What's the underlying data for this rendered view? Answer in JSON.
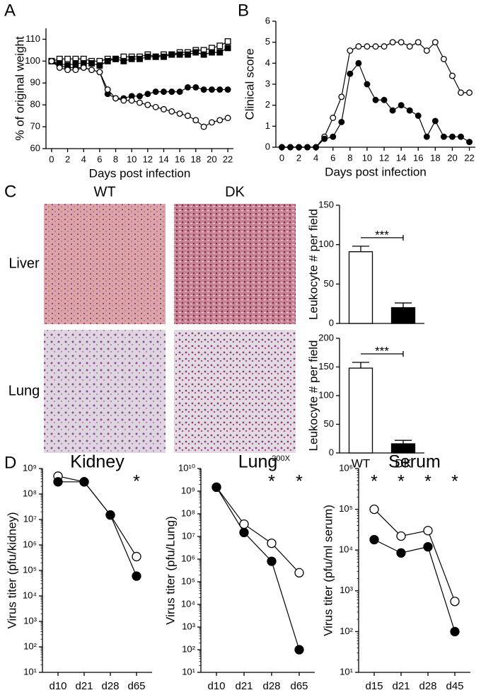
{
  "panel_labels": [
    "A",
    "B",
    "C",
    "D"
  ],
  "histology": {
    "columns": [
      "WT",
      "DK"
    ],
    "rows": [
      "Liver",
      "Lung"
    ],
    "magnification": "200X"
  },
  "chart_data": [
    {
      "type": "line",
      "ylabel": "% of original weight",
      "xlabel": "Days post infection",
      "x": [
        0,
        1,
        2,
        3,
        4,
        5,
        6,
        7,
        8,
        9,
        10,
        11,
        12,
        13,
        14,
        15,
        16,
        17,
        18,
        19,
        20,
        21,
        22
      ],
      "xlim": [
        -0.7,
        22.7
      ],
      "xticks": [
        0,
        2,
        4,
        6,
        8,
        10,
        12,
        14,
        16,
        18,
        20,
        22
      ],
      "ylim": [
        60,
        115
      ],
      "yticks": [
        60,
        70,
        80,
        90,
        100,
        110
      ],
      "series": [
        {
          "marker": "square",
          "color": "#ffffff",
          "values": [
            100,
            101,
            101,
            101,
            101,
            100,
            100,
            101,
            101,
            102,
            102,
            102,
            103,
            102,
            103,
            103,
            104,
            104,
            105,
            105,
            106,
            107,
            109
          ]
        },
        {
          "marker": "square",
          "color": "#000000",
          "values": [
            100,
            99,
            98,
            99,
            99,
            99,
            98,
            100,
            101,
            100,
            101,
            101,
            102,
            102,
            102,
            103,
            103,
            103,
            104,
            103,
            104,
            104,
            106
          ]
        },
        {
          "marker": "circle",
          "color": "#000000",
          "values": [
            100,
            98,
            97,
            97,
            97,
            96,
            95,
            85,
            83,
            83,
            84,
            84,
            85,
            86,
            86,
            86,
            86,
            88,
            88,
            87,
            87,
            87,
            87
          ]
        },
        {
          "marker": "circle",
          "color": "#ffffff",
          "values": [
            100,
            97,
            96,
            96,
            97,
            96,
            95,
            87,
            83,
            82,
            82,
            81,
            80,
            79,
            78,
            77,
            76,
            75,
            73,
            70,
            72,
            73,
            74
          ]
        }
      ]
    },
    {
      "type": "line",
      "ylabel": "Clinical score",
      "xlabel": "Days post infection",
      "x": [
        0,
        1,
        2,
        3,
        4,
        5,
        6,
        7,
        8,
        9,
        10,
        11,
        12,
        13,
        14,
        15,
        16,
        17,
        18,
        19,
        20,
        21,
        22
      ],
      "xlim": [
        -0.7,
        22.7
      ],
      "xticks": [
        0,
        2,
        4,
        6,
        8,
        10,
        12,
        14,
        16,
        18,
        20,
        22
      ],
      "ylim": [
        0,
        6
      ],
      "yticks": [
        0,
        1,
        2,
        3,
        4,
        5,
        6
      ],
      "series": [
        {
          "marker": "circle",
          "color": "#ffffff",
          "values": [
            0,
            0,
            0,
            0,
            0,
            0.5,
            1.4,
            2.4,
            4.6,
            4.8,
            4.8,
            4.8,
            4.8,
            5,
            5,
            4.8,
            5,
            4.6,
            5,
            4.2,
            3.4,
            2.6,
            2.6
          ]
        },
        {
          "marker": "circle",
          "color": "#000000",
          "values": [
            0,
            0,
            0,
            0,
            0,
            0.4,
            0.5,
            1.2,
            3.5,
            4,
            3,
            2.25,
            2.25,
            1.75,
            2,
            1.75,
            1.5,
            0.5,
            1.25,
            0.5,
            0.5,
            0.5,
            0.25
          ]
        }
      ]
    },
    {
      "type": "bar",
      "ylabel": "Leukocyte # per field",
      "categories": [
        null,
        null
      ],
      "values": [
        91,
        20
      ],
      "errors": [
        7,
        6
      ],
      "colors": [
        "#ffffff",
        "#000000"
      ],
      "ylim": [
        0,
        150
      ],
      "yticks": [
        0,
        50,
        100,
        150
      ],
      "annotation": "***"
    },
    {
      "type": "bar",
      "ylabel": "Leukocyte # per field",
      "categories": [
        "WT",
        "DK"
      ],
      "values": [
        148,
        16
      ],
      "errors": [
        10,
        6
      ],
      "colors": [
        "#ffffff",
        "#000000"
      ],
      "ylim": [
        0,
        200
      ],
      "yticks": [
        0,
        50,
        100,
        150,
        200
      ],
      "annotation": "***"
    },
    {
      "type": "line",
      "log_y": true,
      "title": "Kidney",
      "ylabel": "Virus titer (pfu/kidney)",
      "categories": [
        "d10",
        "d21",
        "d28",
        "d65"
      ],
      "ylim": [
        10,
        1000000000
      ],
      "yticks": [
        {
          "value": 10,
          "label": "10¹"
        },
        {
          "value": 100,
          "label": "10²"
        },
        {
          "value": 1000,
          "label": "10³"
        },
        {
          "value": 10000,
          "label": "10⁴"
        },
        {
          "value": 100000,
          "label": "10⁵"
        },
        {
          "value": 1000000,
          "label": "10⁶"
        },
        {
          "value": 10000000,
          "label": "10⁷"
        },
        {
          "value": 100000000,
          "label": "10⁸"
        },
        {
          "value": 1000000000,
          "label": "10⁹"
        }
      ],
      "series": [
        {
          "marker": "circle",
          "color": "#ffffff",
          "values": [
            500000000,
            300000000,
            15000000,
            350000
          ]
        },
        {
          "marker": "circle",
          "color": "#000000",
          "values": [
            300000000,
            300000000,
            15000000,
            60000
          ]
        }
      ],
      "annotations": [
        {
          "at": "d65",
          "text": "*"
        }
      ]
    },
    {
      "type": "line",
      "log_y": true,
      "title": "Lung",
      "ylabel": "Virus titer (pfu/Lung)",
      "categories": [
        "d10",
        "d21",
        "d28",
        "d65"
      ],
      "ylim": [
        10,
        10000000000
      ],
      "yticks": [
        {
          "value": 10,
          "label": "10¹"
        },
        {
          "value": 100,
          "label": "10²"
        },
        {
          "value": 1000,
          "label": "10³"
        },
        {
          "value": 10000,
          "label": "10⁴"
        },
        {
          "value": 100000,
          "label": "10⁵"
        },
        {
          "value": 1000000,
          "label": "10⁶"
        },
        {
          "value": 10000000,
          "label": "10⁷"
        },
        {
          "value": 100000000,
          "label": "10⁸"
        },
        {
          "value": 1000000000,
          "label": "10⁹"
        },
        {
          "value": 10000000000,
          "label": "10¹⁰"
        }
      ],
      "series": [
        {
          "marker": "circle",
          "color": "#ffffff",
          "values": [
            1500000000,
            35000000,
            5000000,
            250000
          ]
        },
        {
          "marker": "circle",
          "color": "#000000",
          "values": [
            1500000000,
            15000000,
            800000,
            100
          ]
        }
      ],
      "annotations": [
        {
          "at": "d28",
          "text": "*"
        },
        {
          "at": "d65",
          "text": "*"
        }
      ]
    },
    {
      "type": "line",
      "log_y": true,
      "title": "Serum",
      "ylabel": "Virus titer (pfu/ml serum)",
      "categories": [
        "d15",
        "d21",
        "d28",
        "d45"
      ],
      "ylim": [
        10,
        1000000
      ],
      "yticks": [
        {
          "value": 10,
          "label": "10¹"
        },
        {
          "value": 100,
          "label": "10²"
        },
        {
          "value": 1000,
          "label": "10³"
        },
        {
          "value": 10000,
          "label": "10⁴"
        },
        {
          "value": 100000,
          "label": "10⁵"
        },
        {
          "value": 1000000,
          "label": "10⁶"
        }
      ],
      "series": [
        {
          "marker": "circle",
          "color": "#ffffff",
          "values": [
            100000,
            22000,
            30000,
            550
          ]
        },
        {
          "marker": "circle",
          "color": "#000000",
          "values": [
            18000,
            8500,
            12000,
            100
          ]
        }
      ],
      "annotations": [
        {
          "at": "d15",
          "text": "*"
        },
        {
          "at": "d21",
          "text": "*"
        },
        {
          "at": "d28",
          "text": "*"
        },
        {
          "at": "d45",
          "text": "*"
        }
      ]
    }
  ]
}
